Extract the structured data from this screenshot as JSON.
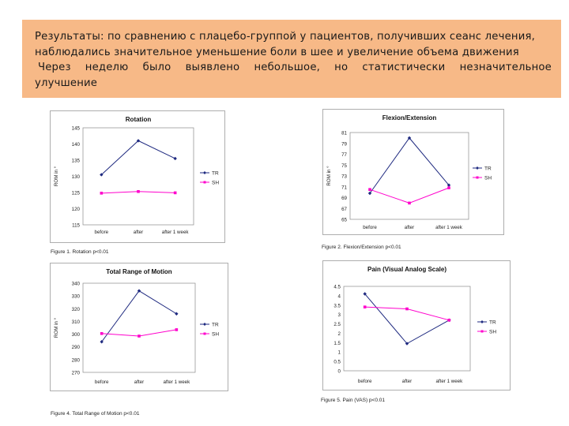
{
  "banner": {
    "line1": "Результаты: по сравнению с плацебо-группой у пациентов, получивших сеанс лечения,",
    "line2": "наблюдались значительное уменьшение боли в шее и увеличение объема движения",
    "line3": "Через неделю было выявлено небольшое, но статистически незначительное",
    "line4": "улучшение",
    "bg_color": "#f7b987"
  },
  "chart_data": [
    {
      "type": "line",
      "title": "Rotation",
      "ylabel": "ROM in °",
      "xlabel": "",
      "categories": [
        "before",
        "after",
        "after 1 week"
      ],
      "yticks": [
        "145",
        "140",
        "135",
        "130",
        "125",
        "120",
        "115"
      ],
      "ylim": [
        115,
        145
      ],
      "series": [
        {
          "name": "TR",
          "values": [
            130.5,
            141,
            135.5
          ],
          "color": "#1f2a80",
          "marker": "diamond"
        },
        {
          "name": "SH",
          "values": [
            124.8,
            125.3,
            124.9
          ],
          "color": "#ff00cc",
          "marker": "square"
        }
      ],
      "legend": "right",
      "caption": "Figure 1. Rotation p<0.01"
    },
    {
      "type": "line",
      "title": "Flexion/Extension",
      "ylabel": "ROM in °",
      "xlabel": "",
      "categories": [
        "before",
        "after",
        "after 1 week"
      ],
      "yticks": [
        "81",
        "79",
        "77",
        "75",
        "73",
        "71",
        "69",
        "67",
        "65"
      ],
      "ylim": [
        65,
        81
      ],
      "series": [
        {
          "name": "TR",
          "values": [
            69.8,
            80,
            71.3
          ],
          "color": "#1f2a80",
          "marker": "diamond"
        },
        {
          "name": "SH",
          "values": [
            70.5,
            68,
            70.8
          ],
          "color": "#ff00cc",
          "marker": "square"
        }
      ],
      "legend": "right",
      "caption": "Figure 2. Flexion/Extension p<0.01"
    },
    {
      "type": "line",
      "title": "Total Range of Motion",
      "ylabel": "ROM in °",
      "xlabel": "",
      "categories": [
        "before",
        "after",
        "after 1 week"
      ],
      "yticks": [
        "340",
        "330",
        "320",
        "310",
        "300",
        "290",
        "280",
        "270"
      ],
      "ylim": [
        270,
        340
      ],
      "series": [
        {
          "name": "TR",
          "values": [
            294,
            334,
            316
          ],
          "color": "#1f2a80",
          "marker": "diamond"
        },
        {
          "name": "SH",
          "values": [
            300.5,
            298.5,
            303.5
          ],
          "color": "#ff00cc",
          "marker": "square"
        }
      ],
      "legend": "right",
      "caption": "Figure 4. Total Range of Motion p<0.01"
    },
    {
      "type": "line",
      "title": "Pain (Visual Analog Scale)",
      "ylabel": "",
      "xlabel": "",
      "categories": [
        "before",
        "after",
        "after 1 week"
      ],
      "yticks": [
        "4.5",
        "4",
        "3.5",
        "3",
        "2.5",
        "2",
        "1.5",
        "1",
        "0.5",
        "0"
      ],
      "ylim": [
        0,
        4.5
      ],
      "series": [
        {
          "name": "TR",
          "values": [
            4.1,
            1.45,
            2.7
          ],
          "color": "#1f2a80",
          "marker": "diamond"
        },
        {
          "name": "SH",
          "values": [
            3.4,
            3.3,
            2.7
          ],
          "color": "#ff00cc",
          "marker": "square"
        }
      ],
      "legend": "right",
      "caption": "Figure 5. Pain (VAS) p<0.01"
    }
  ]
}
